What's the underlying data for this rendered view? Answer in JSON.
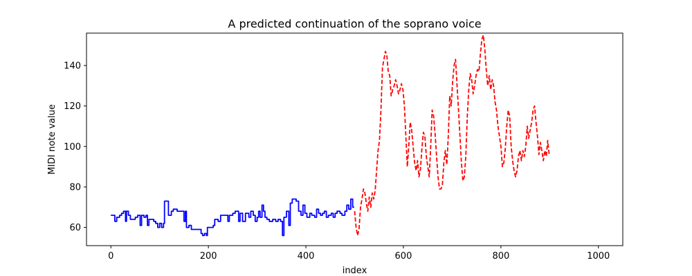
{
  "chart_data": {
    "type": "line",
    "title": "A predicted continuation of the soprano voice",
    "xlabel": "index",
    "ylabel": "MIDI note value",
    "xlim": [
      -50,
      1050
    ],
    "ylim": [
      51,
      156
    ],
    "xticks": [
      0,
      200,
      400,
      600,
      800,
      1000
    ],
    "yticks": [
      60,
      80,
      100,
      120,
      140
    ],
    "grid": false,
    "legend": "none",
    "series": [
      {
        "color": "#0000ff",
        "linestyle": "solid",
        "points": [
          [
            0,
            66
          ],
          [
            8,
            66
          ],
          [
            8,
            63
          ],
          [
            12,
            63
          ],
          [
            12,
            65
          ],
          [
            18,
            65
          ],
          [
            18,
            66
          ],
          [
            22,
            66
          ],
          [
            22,
            67
          ],
          [
            26,
            67
          ],
          [
            26,
            68
          ],
          [
            30,
            68
          ],
          [
            30,
            63
          ],
          [
            32,
            63
          ],
          [
            32,
            68
          ],
          [
            36,
            68
          ],
          [
            36,
            66
          ],
          [
            40,
            66
          ],
          [
            40,
            64
          ],
          [
            50,
            64
          ],
          [
            50,
            65
          ],
          [
            55,
            65
          ],
          [
            55,
            66
          ],
          [
            60,
            66
          ],
          [
            60,
            61
          ],
          [
            63,
            61
          ],
          [
            63,
            66
          ],
          [
            68,
            66
          ],
          [
            68,
            65
          ],
          [
            72,
            65
          ],
          [
            72,
            66
          ],
          [
            75,
            66
          ],
          [
            75,
            61
          ],
          [
            78,
            61
          ],
          [
            78,
            64
          ],
          [
            88,
            64
          ],
          [
            88,
            63
          ],
          [
            92,
            63
          ],
          [
            92,
            62
          ],
          [
            96,
            62
          ],
          [
            96,
            60
          ],
          [
            100,
            60
          ],
          [
            100,
            62
          ],
          [
            104,
            62
          ],
          [
            104,
            60
          ],
          [
            108,
            60
          ],
          [
            108,
            62
          ],
          [
            110,
            62
          ],
          [
            110,
            73
          ],
          [
            118,
            73
          ],
          [
            118,
            66
          ],
          [
            124,
            66
          ],
          [
            124,
            68
          ],
          [
            128,
            68
          ],
          [
            128,
            69
          ],
          [
            136,
            69
          ],
          [
            136,
            68
          ],
          [
            150,
            68
          ],
          [
            150,
            63
          ],
          [
            153,
            63
          ],
          [
            153,
            68
          ],
          [
            155,
            68
          ],
          [
            155,
            60
          ],
          [
            160,
            60
          ],
          [
            160,
            61
          ],
          [
            165,
            61
          ],
          [
            165,
            59
          ],
          [
            185,
            59
          ],
          [
            185,
            57
          ],
          [
            188,
            57
          ],
          [
            188,
            56
          ],
          [
            192,
            56
          ],
          [
            192,
            57
          ],
          [
            196,
            57
          ],
          [
            196,
            56
          ],
          [
            198,
            56
          ],
          [
            198,
            60
          ],
          [
            210,
            60
          ],
          [
            210,
            61
          ],
          [
            213,
            61
          ],
          [
            213,
            64
          ],
          [
            220,
            64
          ],
          [
            220,
            63
          ],
          [
            225,
            63
          ],
          [
            225,
            66
          ],
          [
            240,
            66
          ],
          [
            240,
            63
          ],
          [
            243,
            63
          ],
          [
            243,
            66
          ],
          [
            250,
            66
          ],
          [
            250,
            67
          ],
          [
            255,
            67
          ],
          [
            255,
            68
          ],
          [
            262,
            68
          ],
          [
            262,
            63
          ],
          [
            265,
            63
          ],
          [
            265,
            67
          ],
          [
            270,
            67
          ],
          [
            270,
            63
          ],
          [
            276,
            63
          ],
          [
            276,
            67
          ],
          [
            283,
            67
          ],
          [
            283,
            65
          ],
          [
            287,
            65
          ],
          [
            287,
            68
          ],
          [
            292,
            68
          ],
          [
            292,
            66
          ],
          [
            296,
            66
          ],
          [
            296,
            63
          ],
          [
            300,
            63
          ],
          [
            300,
            65
          ],
          [
            303,
            65
          ],
          [
            303,
            68
          ],
          [
            306,
            68
          ],
          [
            306,
            65
          ],
          [
            310,
            65
          ],
          [
            310,
            71
          ],
          [
            313,
            71
          ],
          [
            313,
            68
          ],
          [
            316,
            68
          ],
          [
            316,
            65
          ],
          [
            320,
            65
          ],
          [
            320,
            64
          ],
          [
            325,
            64
          ],
          [
            325,
            63
          ],
          [
            332,
            63
          ],
          [
            332,
            64
          ],
          [
            338,
            64
          ],
          [
            338,
            63
          ],
          [
            343,
            63
          ],
          [
            343,
            64
          ],
          [
            348,
            64
          ],
          [
            348,
            63
          ],
          [
            352,
            63
          ],
          [
            352,
            56
          ],
          [
            355,
            56
          ],
          [
            355,
            65
          ],
          [
            360,
            65
          ],
          [
            360,
            68
          ],
          [
            365,
            68
          ],
          [
            365,
            61
          ],
          [
            368,
            61
          ],
          [
            368,
            72
          ],
          [
            372,
            72
          ],
          [
            372,
            74
          ],
          [
            380,
            74
          ],
          [
            380,
            73
          ],
          [
            385,
            73
          ],
          [
            385,
            68
          ],
          [
            390,
            68
          ],
          [
            390,
            66
          ],
          [
            394,
            66
          ],
          [
            394,
            71
          ],
          [
            398,
            71
          ],
          [
            398,
            67
          ],
          [
            402,
            67
          ],
          [
            402,
            65
          ],
          [
            408,
            65
          ],
          [
            408,
            67
          ],
          [
            412,
            67
          ],
          [
            412,
            66
          ],
          [
            418,
            66
          ],
          [
            418,
            65
          ],
          [
            422,
            65
          ],
          [
            422,
            69
          ],
          [
            426,
            69
          ],
          [
            426,
            67
          ],
          [
            430,
            67
          ],
          [
            430,
            66
          ],
          [
            434,
            66
          ],
          [
            434,
            67
          ],
          [
            438,
            67
          ],
          [
            438,
            68
          ],
          [
            442,
            68
          ],
          [
            442,
            65
          ],
          [
            446,
            65
          ],
          [
            446,
            66
          ],
          [
            452,
            66
          ],
          [
            452,
            67
          ],
          [
            456,
            67
          ],
          [
            456,
            65
          ],
          [
            460,
            65
          ],
          [
            460,
            67
          ],
          [
            464,
            67
          ],
          [
            464,
            68
          ],
          [
            470,
            68
          ],
          [
            470,
            67
          ],
          [
            474,
            67
          ],
          [
            474,
            66
          ],
          [
            480,
            66
          ],
          [
            480,
            68
          ],
          [
            484,
            68
          ],
          [
            484,
            71
          ],
          [
            488,
            71
          ],
          [
            488,
            69
          ],
          [
            492,
            69
          ],
          [
            492,
            74
          ],
          [
            496,
            74
          ],
          [
            496,
            70
          ],
          [
            499,
            70
          ]
        ]
      },
      {
        "color": "#ff0000",
        "linestyle": "dashed",
        "points": [
          [
            500,
            68
          ],
          [
            503,
            60
          ],
          [
            506,
            56
          ],
          [
            509,
            59
          ],
          [
            512,
            70
          ],
          [
            515,
            74
          ],
          [
            518,
            79
          ],
          [
            521,
            77
          ],
          [
            524,
            72
          ],
          [
            527,
            68
          ],
          [
            530,
            75
          ],
          [
            533,
            70
          ],
          [
            536,
            77
          ],
          [
            539,
            74
          ],
          [
            542,
            78
          ],
          [
            545,
            88
          ],
          [
            548,
            98
          ],
          [
            551,
            103
          ],
          [
            554,
            118
          ],
          [
            557,
            139
          ],
          [
            560,
            143
          ],
          [
            563,
            147
          ],
          [
            566,
            145
          ],
          [
            569,
            137
          ],
          [
            572,
            135
          ],
          [
            575,
            125
          ],
          [
            578,
            128
          ],
          [
            581,
            130
          ],
          [
            584,
            133
          ],
          [
            587,
            130
          ],
          [
            590,
            126
          ],
          [
            593,
            128
          ],
          [
            596,
            131
          ],
          [
            599,
            128
          ],
          [
            602,
            120
          ],
          [
            605,
            105
          ],
          [
            608,
            90
          ],
          [
            611,
            100
          ],
          [
            614,
            112
          ],
          [
            617,
            108
          ],
          [
            620,
            100
          ],
          [
            623,
            92
          ],
          [
            626,
            88
          ],
          [
            629,
            93
          ],
          [
            632,
            85
          ],
          [
            635,
            89
          ],
          [
            638,
            99
          ],
          [
            641,
            107
          ],
          [
            644,
            105
          ],
          [
            647,
            95
          ],
          [
            650,
            90
          ],
          [
            653,
            85
          ],
          [
            656,
            100
          ],
          [
            659,
            118
          ],
          [
            662,
            115
          ],
          [
            665,
            106
          ],
          [
            668,
            95
          ],
          [
            671,
            85
          ],
          [
            674,
            79
          ],
          [
            677,
            79
          ],
          [
            680,
            81
          ],
          [
            683,
            92
          ],
          [
            686,
            98
          ],
          [
            689,
            91
          ],
          [
            692,
            105
          ],
          [
            695,
            125
          ],
          [
            698,
            120
          ],
          [
            701,
            132
          ],
          [
            704,
            140
          ],
          [
            707,
            143
          ],
          [
            710,
            130
          ],
          [
            713,
            118
          ],
          [
            716,
            105
          ],
          [
            719,
            92
          ],
          [
            722,
            83
          ],
          [
            725,
            85
          ],
          [
            728,
            95
          ],
          [
            731,
            115
          ],
          [
            734,
            128
          ],
          [
            737,
            136
          ],
          [
            740,
            133
          ],
          [
            743,
            126
          ],
          [
            746,
            130
          ],
          [
            749,
            135
          ],
          [
            752,
            138
          ],
          [
            755,
            137
          ],
          [
            758,
            146
          ],
          [
            761,
            153
          ],
          [
            764,
            155
          ],
          [
            767,
            148
          ],
          [
            770,
            138
          ],
          [
            773,
            130
          ],
          [
            776,
            135
          ],
          [
            779,
            128
          ],
          [
            782,
            133
          ],
          [
            785,
            130
          ],
          [
            788,
            122
          ],
          [
            791,
            118
          ],
          [
            794,
            110
          ],
          [
            797,
            105
          ],
          [
            800,
            100
          ],
          [
            803,
            90
          ],
          [
            806,
            92
          ],
          [
            809,
            99
          ],
          [
            812,
            110
          ],
          [
            815,
            118
          ],
          [
            818,
            115
          ],
          [
            821,
            100
          ],
          [
            824,
            93
          ],
          [
            827,
            88
          ],
          [
            830,
            85
          ],
          [
            833,
            88
          ],
          [
            836,
            95
          ],
          [
            839,
            98
          ],
          [
            842,
            93
          ],
          [
            845,
            98
          ],
          [
            848,
            95
          ],
          [
            851,
            100
          ],
          [
            854,
            110
          ],
          [
            857,
            104
          ],
          [
            860,
            108
          ],
          [
            863,
            112
          ],
          [
            866,
            118
          ],
          [
            869,
            120
          ],
          [
            872,
            112
          ],
          [
            875,
            105
          ],
          [
            878,
            96
          ],
          [
            881,
            102
          ],
          [
            884,
            98
          ],
          [
            887,
            93
          ],
          [
            890,
            98
          ],
          [
            893,
            95
          ],
          [
            896,
            103
          ],
          [
            899,
            96
          ]
        ]
      }
    ]
  }
}
